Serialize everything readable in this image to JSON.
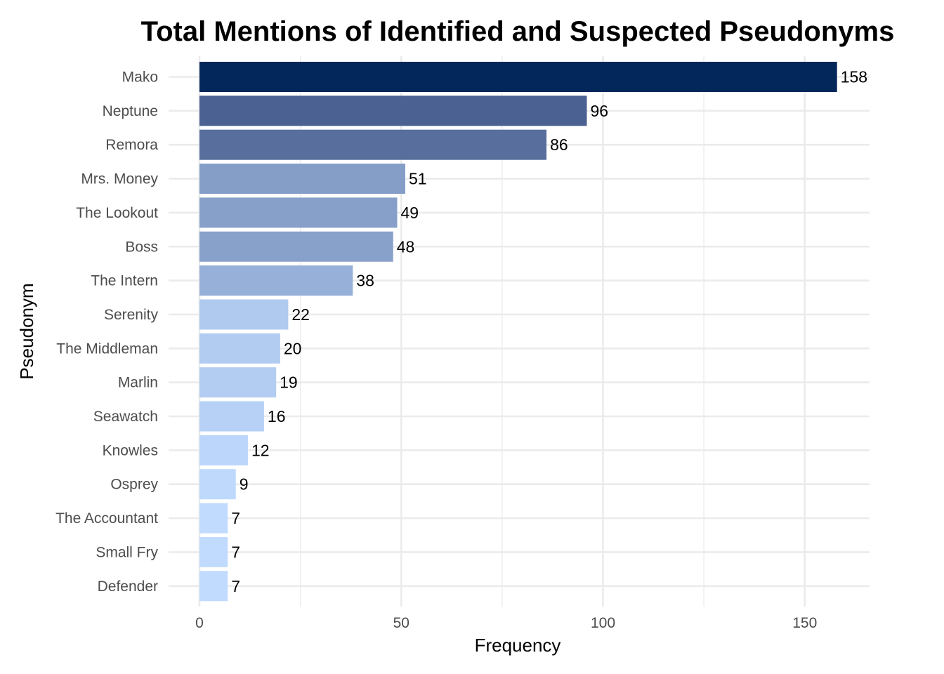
{
  "chart_data": {
    "type": "bar",
    "orientation": "horizontal",
    "title": "Total Mentions of Identified and Suspected Pseudonyms",
    "xlabel": "Frequency",
    "ylabel": "Pseudonym",
    "xlim": [
      0,
      166
    ],
    "x_ticks": [
      0,
      50,
      100,
      150
    ],
    "x_minor_ticks": [
      25,
      75,
      125
    ],
    "grid": true,
    "legend": "none",
    "categories": [
      "Mako",
      "Neptune",
      "Remora",
      "Mrs. Money",
      "The Lookout",
      "Boss",
      "The Intern",
      "Serenity",
      "The Middleman",
      "Marlin",
      "Seawatch",
      "Knowles",
      "Osprey",
      "The Accountant",
      "Small Fry",
      "Defender"
    ],
    "values": [
      158,
      96,
      86,
      51,
      49,
      48,
      38,
      22,
      20,
      19,
      16,
      12,
      9,
      7,
      7,
      7
    ],
    "colors": [
      "#03275a",
      "#4a6192",
      "#586f9e",
      "#849ec7",
      "#87a0c9",
      "#88a1ca",
      "#97b0d9",
      "#b0caef",
      "#b2ccf1",
      "#b3cdf2",
      "#b7d1f6",
      "#bbd6fa",
      "#bfd9fd",
      "#c1dbff",
      "#c1dbff",
      "#c1dbff"
    ]
  }
}
